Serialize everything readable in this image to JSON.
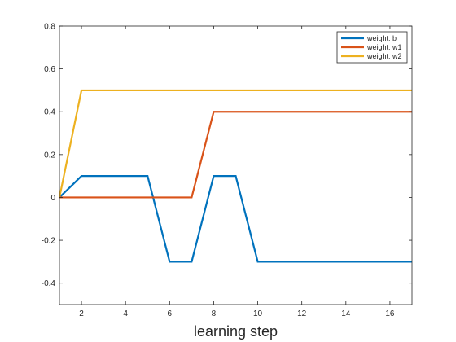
{
  "chart_data": {
    "type": "line",
    "title": "",
    "xlabel": "learning step",
    "ylabel": "",
    "xlim": [
      1,
      17
    ],
    "ylim": [
      -0.5,
      0.8
    ],
    "x_ticks": [
      2,
      4,
      6,
      8,
      10,
      12,
      14,
      16
    ],
    "y_ticks": [
      -0.4,
      -0.2,
      0,
      0.2,
      0.4,
      0.6,
      0.8
    ],
    "x_tick_labels": [
      "2",
      "4",
      "6",
      "8",
      "10",
      "12",
      "14",
      "16"
    ],
    "y_tick_labels": [
      "-0.4",
      "-0.2",
      "0",
      "0.2",
      "0.4",
      "0.6",
      "0.8"
    ],
    "grid": false,
    "legend_position": "top-right",
    "x": [
      1,
      2,
      3,
      4,
      5,
      6,
      7,
      8,
      9,
      10,
      11,
      12,
      13,
      14,
      15,
      16,
      17
    ],
    "series": [
      {
        "name": "weight: b",
        "color": "#0072BD",
        "values": [
          0,
          0.1,
          0.1,
          0.1,
          0.1,
          -0.3,
          -0.3,
          0.1,
          0.1,
          -0.3,
          -0.3,
          -0.3,
          -0.3,
          -0.3,
          -0.3,
          -0.3,
          -0.3
        ]
      },
      {
        "name": "weight: w1",
        "color": "#D95319",
        "values": [
          0,
          0,
          0,
          0,
          0,
          0,
          0,
          0.4,
          0.4,
          0.4,
          0.4,
          0.4,
          0.4,
          0.4,
          0.4,
          0.4,
          0.4
        ]
      },
      {
        "name": "weight: w2",
        "color": "#EDB120",
        "values": [
          0,
          0.5,
          0.5,
          0.5,
          0.5,
          0.5,
          0.5,
          0.5,
          0.5,
          0.5,
          0.5,
          0.5,
          0.5,
          0.5,
          0.5,
          0.5,
          0.5
        ]
      }
    ]
  }
}
